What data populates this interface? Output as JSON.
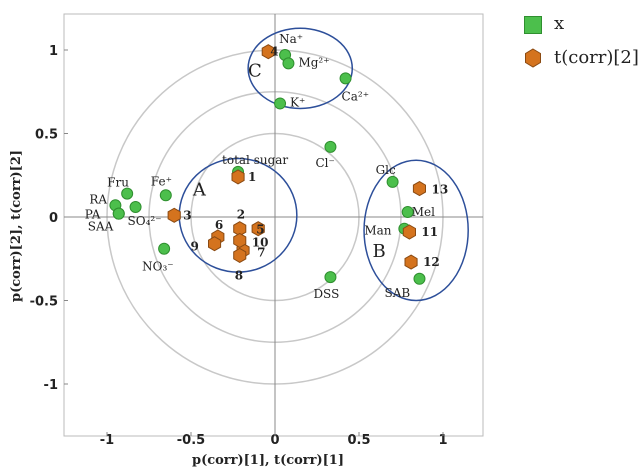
{
  "chart_data": {
    "type": "scatter",
    "xlabel": "p(corr)[1], t(corr)[1]",
    "ylabel": "p(corr)[2], t(corr)[2]",
    "xlim": [
      -1.25,
      1.25
    ],
    "ylim": [
      -1.25,
      1.25
    ],
    "x_ticks": [
      "-1",
      "-0.5",
      "0",
      "0.5",
      "1"
    ],
    "y_ticks": [
      "1",
      "0.5",
      "0",
      "-0.5",
      "-1"
    ],
    "grid": false,
    "legend_position": "top-right, outside plot",
    "series": [
      {
        "name": "x",
        "marker": "circle",
        "color": "#4cbf4c",
        "points": [
          {
            "label": "Na⁺",
            "x": 0.06,
            "y": 0.97
          },
          {
            "label": "Mg²⁺",
            "x": 0.08,
            "y": 0.92
          },
          {
            "label": "Ca²⁺",
            "x": 0.42,
            "y": 0.83
          },
          {
            "label": "K⁺",
            "x": 0.03,
            "y": 0.68
          },
          {
            "label": "Cl⁻",
            "x": 0.33,
            "y": 0.42
          },
          {
            "label": "total sugar",
            "x": -0.22,
            "y": 0.27
          },
          {
            "label": "Fru",
            "x": -0.88,
            "y": 0.14
          },
          {
            "label": "Fe⁺",
            "x": -0.65,
            "y": 0.13
          },
          {
            "label": "RA",
            "x": -0.95,
            "y": 0.07
          },
          {
            "label": "SO₄²⁻",
            "x": -0.83,
            "y": 0.06
          },
          {
            "label": "PA",
            "x": -0.93,
            "y": 0.02
          },
          {
            "label": "SAA",
            "x": -0.93,
            "y": 0.02
          },
          {
            "label": "NO₃⁻",
            "x": -0.66,
            "y": -0.19
          },
          {
            "label": "DSS",
            "x": 0.33,
            "y": -0.36
          },
          {
            "label": "Glc",
            "x": 0.7,
            "y": 0.21
          },
          {
            "label": "Mel",
            "x": 0.79,
            "y": 0.03
          },
          {
            "label": "Man",
            "x": 0.77,
            "y": -0.07
          },
          {
            "label": "SAB",
            "x": 0.86,
            "y": -0.37
          }
        ]
      },
      {
        "name": "t(corr)[2]",
        "marker": "hexagon",
        "color": "#d4731e",
        "points": [
          {
            "label": "1",
            "x": -0.22,
            "y": 0.24
          },
          {
            "label": "2",
            "x": -0.21,
            "y": -0.07
          },
          {
            "label": "3",
            "x": -0.6,
            "y": 0.01
          },
          {
            "label": "4",
            "x": -0.04,
            "y": 0.99
          },
          {
            "label": "5",
            "x": -0.1,
            "y": -0.07
          },
          {
            "label": "6",
            "x": -0.34,
            "y": -0.12
          },
          {
            "label": "7",
            "x": -0.19,
            "y": -0.2
          },
          {
            "label": "8",
            "x": -0.21,
            "y": -0.23
          },
          {
            "label": "9",
            "x": -0.36,
            "y": -0.16
          },
          {
            "label": "10",
            "x": -0.21,
            "y": -0.14
          },
          {
            "label": "11",
            "x": 0.8,
            "y": -0.09
          },
          {
            "label": "12",
            "x": 0.81,
            "y": -0.27
          },
          {
            "label": "13",
            "x": 0.86,
            "y": 0.17
          }
        ]
      }
    ],
    "annotations": {
      "circles_radii": [
        0.5,
        0.75,
        1.0
      ],
      "groups": [
        {
          "label": "A",
          "cx": -0.22,
          "cy": 0.01,
          "rx": 0.35,
          "ry": 0.34
        },
        {
          "label": "B",
          "cx": 0.84,
          "cy": -0.08,
          "rx": 0.31,
          "ry": 0.42
        },
        {
          "label": "C",
          "cx": 0.15,
          "cy": 0.89,
          "rx": 0.31,
          "ry": 0.24
        }
      ]
    }
  },
  "legend": {
    "items": [
      {
        "label": "x"
      },
      {
        "label": "t(corr)[2]"
      }
    ]
  }
}
